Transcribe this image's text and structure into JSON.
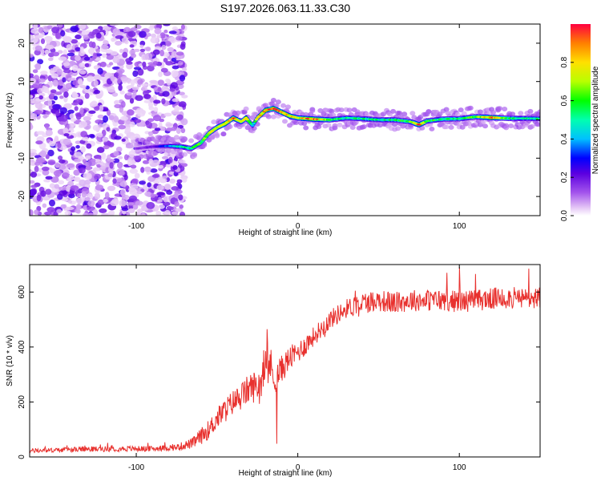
{
  "chart_data": [
    {
      "type": "heatmap",
      "title": "S197.2026.063.11.33.C30",
      "xlabel": "Height of straight line (km)",
      "ylabel": "Frequency (Hz)",
      "xlim": [
        -166,
        150
      ],
      "ylim": [
        -25,
        25
      ],
      "xticks": [
        -100,
        0,
        100
      ],
      "xtick_labels": [
        "-100",
        "0",
        "100"
      ],
      "yticks": [
        -20,
        -10,
        0,
        10,
        20
      ],
      "ytick_labels": [
        "-20",
        "-10",
        "0",
        "10",
        "20"
      ],
      "noise_region_x": [
        -166,
        -70
      ],
      "ridge_x": [
        -100,
        -90,
        -80,
        -72,
        -66,
        -60,
        -55,
        -50,
        -45,
        -40,
        -35,
        -32,
        -28,
        -25,
        -20,
        -15,
        -10,
        -5,
        0,
        10,
        20,
        30,
        40,
        50,
        60,
        70,
        75,
        80,
        90,
        100,
        110,
        120,
        130,
        140,
        150
      ],
      "ridge_freq": [
        -7.5,
        -7,
        -6.8,
        -7,
        -7.5,
        -6,
        -3.5,
        -2,
        -1,
        0.5,
        -0.5,
        0.5,
        -1.5,
        0.5,
        2.5,
        3,
        2,
        1,
        0.5,
        0.2,
        0,
        0.5,
        0.3,
        0,
        0,
        -0.5,
        -1.3,
        -0.3,
        0.2,
        0.3,
        0.8,
        0.6,
        0.4,
        0.4,
        0.3
      ],
      "ridge_amp": [
        0.15,
        0.2,
        0.35,
        0.5,
        0.55,
        0.6,
        0.7,
        0.75,
        0.8,
        0.9,
        0.7,
        0.85,
        0.4,
        0.75,
        0.85,
        0.95,
        0.9,
        0.8,
        0.75,
        0.9,
        0.6,
        0.5,
        0.55,
        0.5,
        0.55,
        0.6,
        0.9,
        0.6,
        0.55,
        0.55,
        0.6,
        0.9,
        0.55,
        0.5,
        0.5
      ]
    },
    {
      "type": "line",
      "xlabel": "Height of straight line (km)",
      "ylabel": "SNR (10 * v/v)",
      "xlim": [
        -166,
        150
      ],
      "ylim": [
        0,
        700
      ],
      "xticks": [
        -100,
        0,
        100
      ],
      "xtick_labels": [
        "-100",
        "0",
        "100"
      ],
      "yticks": [
        0,
        200,
        400,
        600
      ],
      "ytick_labels": [
        "0",
        "200",
        "400",
        "600"
      ],
      "line_color": "#e8312e",
      "x": [
        -166,
        -150,
        -130,
        -110,
        -90,
        -75,
        -65,
        -60,
        -55,
        -50,
        -45,
        -40,
        -35,
        -30,
        -25,
        -20,
        -17,
        -15,
        -10,
        -5,
        0,
        5,
        10,
        15,
        20,
        25,
        30,
        40,
        50,
        60,
        70,
        80,
        90,
        100,
        110,
        120,
        130,
        140,
        150
      ],
      "values": [
        22,
        25,
        28,
        30,
        30,
        35,
        50,
        75,
        100,
        140,
        170,
        200,
        220,
        250,
        260,
        300,
        340,
        280,
        320,
        360,
        380,
        410,
        440,
        470,
        500,
        520,
        540,
        560,
        570,
        560,
        570,
        570,
        570,
        565,
        570,
        575,
        580,
        575,
        580
      ],
      "noise_amp": [
        8,
        8,
        10,
        10,
        10,
        12,
        20,
        30,
        35,
        40,
        45,
        45,
        50,
        55,
        60,
        60,
        70,
        60,
        50,
        45,
        40,
        40,
        35,
        35,
        35,
        35,
        35,
        40,
        40,
        40,
        40,
        40,
        40,
        40,
        40,
        40,
        40,
        40,
        40
      ],
      "spikes": [
        {
          "x": -19,
          "y": 465
        },
        {
          "x": -13,
          "y": 48
        },
        {
          "x": 100,
          "y": 690
        },
        {
          "x": 143,
          "y": 685
        }
      ]
    }
  ],
  "colorbar": {
    "label": "Normalized spectral amplitude",
    "ticks": [
      0.0,
      0.2,
      0.4,
      0.6,
      0.8
    ],
    "tick_labels": [
      "0.0",
      "0.2",
      "0.4",
      "0.6",
      "0.8"
    ],
    "range": [
      0,
      1
    ]
  }
}
